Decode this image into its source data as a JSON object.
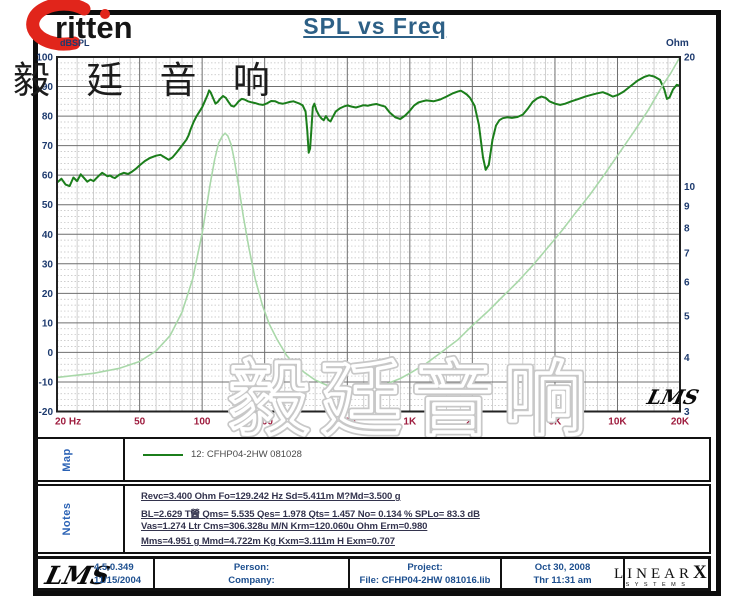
{
  "brand": {
    "logo_text": "ritten",
    "chinese": "毅 廷 音 响"
  },
  "title": "SPL vs Freq",
  "chart_data": {
    "type": "line",
    "title": "SPL vs Freq",
    "x_axis": {
      "label": "Hz",
      "scale": "log",
      "min": 20,
      "max": 20000,
      "tick_values": [
        20,
        50,
        100,
        200,
        500,
        1000,
        2000,
        5000,
        10000,
        20000
      ],
      "tick_labels": [
        "20 Hz",
        "50",
        "100",
        "200",
        "500",
        "1K",
        "2K",
        "5K",
        "10K",
        "20K"
      ],
      "minor_lines": [
        25,
        30,
        35,
        40,
        45,
        60,
        70,
        80,
        90,
        125,
        150,
        175,
        250,
        300,
        350,
        400,
        450,
        600,
        700,
        800,
        900,
        1250,
        1500,
        1750,
        2500,
        3000,
        3500,
        4000,
        4500,
        6000,
        7000,
        8000,
        9000,
        12500,
        15000,
        17500
      ]
    },
    "y_left": {
      "label": "dBSPL",
      "min": -20,
      "max": 100,
      "major_step": 10,
      "minor_step": 2,
      "ticks": [
        100,
        90,
        80,
        70,
        60,
        50,
        40,
        30,
        20,
        10,
        0,
        -10,
        -20
      ]
    },
    "y_right": {
      "label": "Ohm",
      "scale": "log",
      "min": 3,
      "max": 20,
      "ticks": [
        20,
        10,
        9,
        8,
        7,
        6,
        5,
        4,
        3
      ]
    },
    "grid": true,
    "legend": "12: CFHP04-2HW    081028",
    "series": [
      {
        "name": "SPL 12: CFHP04-2HW 081028",
        "axis": "left",
        "color": "#1b7e1b",
        "width": 2,
        "points": [
          [
            20,
            57.5
          ],
          [
            21,
            58.8
          ],
          [
            22,
            56.8
          ],
          [
            23,
            56.3
          ],
          [
            24,
            59.2
          ],
          [
            25,
            58.0
          ],
          [
            26,
            60.3
          ],
          [
            27,
            59.0
          ],
          [
            28,
            57.8
          ],
          [
            29,
            58.5
          ],
          [
            30,
            58.0
          ],
          [
            31,
            59.0
          ],
          [
            32,
            60.0
          ],
          [
            33,
            60.8
          ],
          [
            34,
            60.2
          ],
          [
            35,
            59.6
          ],
          [
            36,
            59.9
          ],
          [
            37,
            59.3
          ],
          [
            38,
            59.0
          ],
          [
            40,
            60.2
          ],
          [
            42,
            60.8
          ],
          [
            44,
            60.4
          ],
          [
            46,
            61.2
          ],
          [
            48,
            62.2
          ],
          [
            50,
            63.3
          ],
          [
            53,
            64.8
          ],
          [
            56,
            65.8
          ],
          [
            60,
            66.6
          ],
          [
            63,
            66.9
          ],
          [
            66,
            66.0
          ],
          [
            69,
            65.2
          ],
          [
            72,
            66.0
          ],
          [
            75,
            67.5
          ],
          [
            78,
            69.0
          ],
          [
            81,
            70.5
          ],
          [
            84,
            72.0
          ],
          [
            86,
            73.5
          ],
          [
            88,
            75.5
          ],
          [
            91,
            78.0
          ],
          [
            94,
            80.0
          ],
          [
            97,
            81.5
          ],
          [
            100,
            83.0
          ],
          [
            103,
            85.0
          ],
          [
            106,
            87.0
          ],
          [
            108,
            88.7
          ],
          [
            110,
            88.0
          ],
          [
            113,
            86.0
          ],
          [
            116,
            84.2
          ],
          [
            119,
            84.8
          ],
          [
            122,
            85.8
          ],
          [
            126,
            86.8
          ],
          [
            130,
            86.2
          ],
          [
            134,
            84.8
          ],
          [
            138,
            83.5
          ],
          [
            142,
            83.2
          ],
          [
            146,
            84.0
          ],
          [
            150,
            85.0
          ],
          [
            155,
            85.8
          ],
          [
            160,
            85.6
          ],
          [
            166,
            85.0
          ],
          [
            172,
            84.7
          ],
          [
            180,
            84.4
          ],
          [
            188,
            84.0
          ],
          [
            196,
            83.8
          ],
          [
            205,
            84.3
          ],
          [
            215,
            85.1
          ],
          [
            225,
            85.0
          ],
          [
            235,
            84.4
          ],
          [
            245,
            84.2
          ],
          [
            255,
            84.5
          ],
          [
            265,
            84.8
          ],
          [
            275,
            85.0
          ],
          [
            285,
            84.6
          ],
          [
            295,
            84.2
          ],
          [
            305,
            83.6
          ],
          [
            315,
            81.5
          ],
          [
            321,
            75.0
          ],
          [
            326,
            67.6
          ],
          [
            331,
            69.0
          ],
          [
            336,
            76.0
          ],
          [
            341,
            83.0
          ],
          [
            347,
            84.2
          ],
          [
            355,
            82.0
          ],
          [
            365,
            80.3
          ],
          [
            375,
            79.2
          ],
          [
            385,
            78.6
          ],
          [
            395,
            80.0
          ],
          [
            405,
            78.7
          ],
          [
            415,
            78.2
          ],
          [
            425,
            79.6
          ],
          [
            440,
            81.6
          ],
          [
            460,
            82.6
          ],
          [
            480,
            83.2
          ],
          [
            500,
            83.6
          ],
          [
            525,
            83.2
          ],
          [
            550,
            82.9
          ],
          [
            575,
            83.3
          ],
          [
            600,
            83.7
          ],
          [
            630,
            83.5
          ],
          [
            660,
            83.9
          ],
          [
            690,
            84.1
          ],
          [
            720,
            83.7
          ],
          [
            760,
            83.2
          ],
          [
            800,
            81.2
          ],
          [
            850,
            79.6
          ],
          [
            900,
            79.0
          ],
          [
            950,
            80.2
          ],
          [
            1000,
            81.8
          ],
          [
            1050,
            83.6
          ],
          [
            1100,
            84.6
          ],
          [
            1150,
            85.0
          ],
          [
            1200,
            85.3
          ],
          [
            1300,
            85.0
          ],
          [
            1400,
            85.6
          ],
          [
            1500,
            86.6
          ],
          [
            1600,
            87.6
          ],
          [
            1700,
            88.3
          ],
          [
            1760,
            88.6
          ],
          [
            1820,
            88.0
          ],
          [
            1880,
            87.3
          ],
          [
            1950,
            86.2
          ],
          [
            2050,
            83.5
          ],
          [
            2150,
            77.0
          ],
          [
            2250,
            66.0
          ],
          [
            2320,
            61.8
          ],
          [
            2400,
            63.5
          ],
          [
            2500,
            72.0
          ],
          [
            2600,
            76.8
          ],
          [
            2700,
            78.6
          ],
          [
            2800,
            79.3
          ],
          [
            2950,
            79.6
          ],
          [
            3100,
            79.4
          ],
          [
            3300,
            79.7
          ],
          [
            3500,
            80.5
          ],
          [
            3700,
            82.5
          ],
          [
            3900,
            84.8
          ],
          [
            4100,
            86.0
          ],
          [
            4300,
            86.6
          ],
          [
            4500,
            86.2
          ],
          [
            4700,
            85.0
          ],
          [
            5000,
            84.2
          ],
          [
            5300,
            83.8
          ],
          [
            5600,
            84.2
          ],
          [
            6000,
            85.0
          ],
          [
            6500,
            85.8
          ],
          [
            7000,
            86.6
          ],
          [
            7500,
            87.2
          ],
          [
            8000,
            87.7
          ],
          [
            8500,
            88.1
          ],
          [
            9000,
            87.4
          ],
          [
            9500,
            86.6
          ],
          [
            10000,
            87.1
          ],
          [
            10700,
            88.3
          ],
          [
            11500,
            90.0
          ],
          [
            12500,
            92.0
          ],
          [
            13500,
            93.3
          ],
          [
            14200,
            93.8
          ],
          [
            15000,
            93.4
          ],
          [
            16000,
            92.3
          ],
          [
            16800,
            89.0
          ],
          [
            17300,
            85.8
          ],
          [
            17800,
            86.3
          ],
          [
            18500,
            89.0
          ],
          [
            19300,
            90.6
          ],
          [
            20000,
            90.3
          ]
        ]
      },
      {
        "name": "Impedance",
        "axis": "right",
        "color": "#a9d8a9",
        "width": 1.6,
        "points": [
          [
            20,
            3.6
          ],
          [
            30,
            3.68
          ],
          [
            40,
            3.78
          ],
          [
            50,
            3.92
          ],
          [
            60,
            4.15
          ],
          [
            70,
            4.5
          ],
          [
            80,
            5.1
          ],
          [
            90,
            6.1
          ],
          [
            100,
            7.8
          ],
          [
            105,
            9.0
          ],
          [
            110,
            10.3
          ],
          [
            115,
            11.6
          ],
          [
            120,
            12.6
          ],
          [
            125,
            13.1
          ],
          [
            129,
            13.3
          ],
          [
            133,
            13.1
          ],
          [
            138,
            12.5
          ],
          [
            143,
            11.5
          ],
          [
            150,
            10.0
          ],
          [
            158,
            8.5
          ],
          [
            168,
            7.2
          ],
          [
            180,
            6.1
          ],
          [
            195,
            5.3
          ],
          [
            210,
            4.8
          ],
          [
            230,
            4.4
          ],
          [
            255,
            4.05
          ],
          [
            280,
            3.85
          ],
          [
            310,
            3.7
          ],
          [
            350,
            3.55
          ],
          [
            400,
            3.45
          ],
          [
            460,
            3.4
          ],
          [
            520,
            3.37
          ],
          [
            600,
            3.38
          ],
          [
            700,
            3.42
          ],
          [
            800,
            3.5
          ],
          [
            900,
            3.58
          ],
          [
            1000,
            3.68
          ],
          [
            1200,
            3.88
          ],
          [
            1400,
            4.1
          ],
          [
            1700,
            4.4
          ],
          [
            2000,
            4.75
          ],
          [
            2400,
            5.15
          ],
          [
            2800,
            5.55
          ],
          [
            3300,
            6.0
          ],
          [
            3900,
            6.55
          ],
          [
            4600,
            7.2
          ],
          [
            5400,
            7.9
          ],
          [
            6300,
            8.7
          ],
          [
            7400,
            9.6
          ],
          [
            8700,
            10.7
          ],
          [
            10000,
            11.8
          ],
          [
            12000,
            13.4
          ],
          [
            14000,
            15.0
          ],
          [
            16500,
            17.2
          ],
          [
            18000,
            18.3
          ],
          [
            20000,
            20.0
          ]
        ]
      }
    ]
  },
  "watermarks": {
    "plot_lms": "LMS",
    "big_text": "毅廷音响"
  },
  "map": {
    "label": "Map",
    "legend": "12: CFHP04-2HW    081028"
  },
  "notes": {
    "label": "Notes",
    "lines": [
      "Revc=3.400 Ohm  Fo=129.242 Hz  Sd=5.411m M?Md=3.500 g",
      "BL=2.629 T醟  Qms= 5.535  Qes= 1.978  Qts= 1.457  No= 0.134 %  SPLo= 83.3 dB",
      "Vas=1.274 Ltr  Cms=306.328u M/N  Krm=120.060u Ohm  Erm=0.980",
      "Mms=4.951 g  Mmd=4.722m Kg  Kxm=3.111m H  Exm=0.707"
    ]
  },
  "footer": {
    "lms_logo": "LMS",
    "version": "4.5.0.349",
    "version_date": "11/15/2004",
    "person_label": "Person:",
    "company_label": "Company:",
    "project_label": "Project:",
    "file_label": "File: CFHP04-2HW  081016.lib",
    "date": "Oct 30, 2008",
    "time": "Thr 11:31 am",
    "linearx_main": "LINEAR",
    "linearx_x": "X",
    "linearx_sub": "SYSTEMS"
  },
  "colors": {
    "title": "#2d6086",
    "spl_curve": "#1b7e1b",
    "impedance_curve": "#a9d8a9",
    "y_axis_labels": "#1d3a6e",
    "x_axis_labels": "#9e1c3e",
    "grid_major": "#6f6f6f",
    "grid_minor": "#c4c4c4",
    "footer_text": "#1d4f8f",
    "brand_red": "#e1251b"
  }
}
